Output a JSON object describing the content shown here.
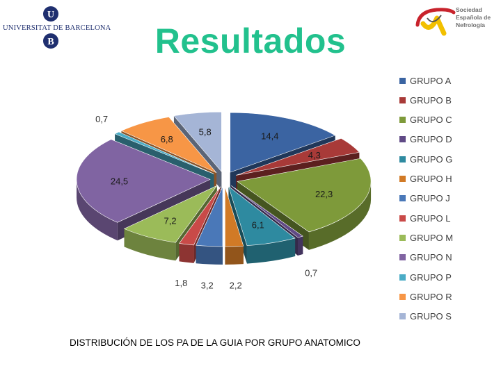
{
  "header": {
    "title": "Resultados",
    "university_name": "UNIVERSITAT DE BARCELONA",
    "society_lines": [
      "Sociedad",
      "Española de",
      "Nefrología"
    ]
  },
  "caption": "DISTRIBUCIÓN DE LOS PA DE LA GUIA POR GRUPO ANATOMICO",
  "chart_data": {
    "type": "pie",
    "title": "",
    "categories": [
      "GRUPO A",
      "GRUPO B",
      "GRUPO C",
      "GRUPO D",
      "GRUPO G",
      "GRUPO H",
      "GRUPO J",
      "GRUPO L",
      "GRUPO M",
      "GRUPO N",
      "GRUPO P",
      "GRUPO R",
      "GRUPO S"
    ],
    "values": [
      14.4,
      4.3,
      22.3,
      0.7,
      6.1,
      2.2,
      3.2,
      1.8,
      7.2,
      24.5,
      0.7,
      6.8,
      5.8
    ],
    "value_labels": [
      "14,4",
      "4,3",
      "22,3",
      "0,7",
      "6,1",
      "2,2",
      "3,2",
      "1,8",
      "7,2",
      "24,5",
      "0,7",
      "6,8",
      "5,8"
    ],
    "colors": [
      "#3b64a2",
      "#a83a38",
      "#7e9a3a",
      "#604a86",
      "#2e8aa0",
      "#d17a26",
      "#4a78b8",
      "#c94a48",
      "#9bbb59",
      "#8064a2",
      "#4bacc6",
      "#f79646",
      "#a5b5d6"
    ],
    "exploded": true,
    "style": "3d",
    "legend": "right"
  }
}
